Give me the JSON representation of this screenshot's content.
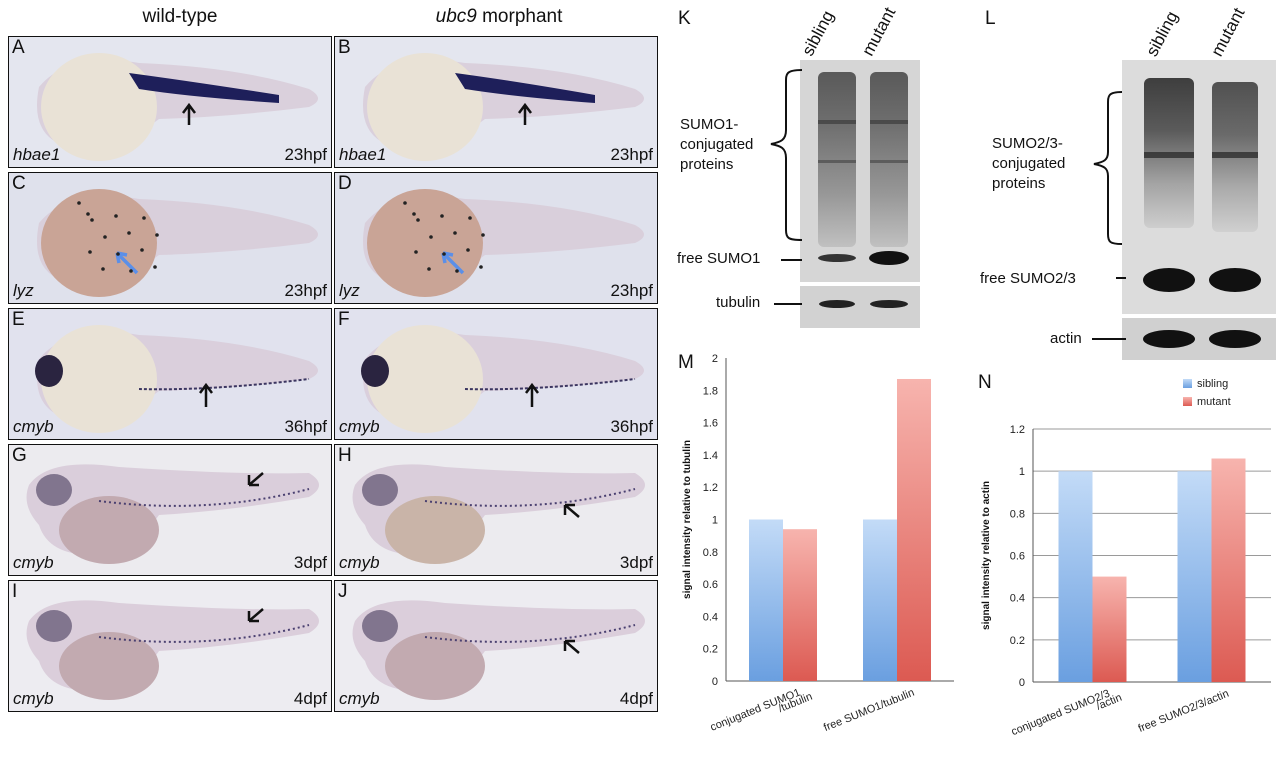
{
  "header": {
    "left": "wild-type",
    "right_gene": "ubc9",
    "right_rest": " morphant"
  },
  "panels": [
    {
      "letter": "A",
      "gene": "hbae1",
      "stage": "23hpf"
    },
    {
      "letter": "B",
      "gene": "hbae1",
      "stage": "23hpf"
    },
    {
      "letter": "C",
      "gene": "lyz",
      "stage": "23hpf"
    },
    {
      "letter": "D",
      "gene": "lyz",
      "stage": "23hpf"
    },
    {
      "letter": "E",
      "gene": "cmyb",
      "stage": "36hpf"
    },
    {
      "letter": "F",
      "gene": "cmyb",
      "stage": "36hpf"
    },
    {
      "letter": "G",
      "gene": "cmyb",
      "stage": "3dpf"
    },
    {
      "letter": "H",
      "gene": "cmyb",
      "stage": "3dpf"
    },
    {
      "letter": "I",
      "gene": "cmyb",
      "stage": "4dpf"
    },
    {
      "letter": "J",
      "gene": "cmyb",
      "stage": "4dpf"
    }
  ],
  "blotK": {
    "letter": "K",
    "lane1": "sibling",
    "lane2": "mutant",
    "label1": "SUMO1-",
    "label2": "conjugated",
    "label3": "proteins",
    "free": "free SUMO1",
    "loading": "tubulin"
  },
  "blotL": {
    "letter": "L",
    "lane1": "sibling",
    "lane2": "mutant",
    "label1": "SUMO2/3-",
    "label2": "conjugated",
    "label3": "proteins",
    "free": "free SUMO2/3",
    "loading": "actin"
  },
  "colors": {
    "sibling": "#8fb8ea",
    "mutant": "#e8817a"
  },
  "chart_data": [
    {
      "type": "bar",
      "letter": "M",
      "categories": [
        "conjugated SUMO1 /tubulin",
        "free SUMO1/tubulin"
      ],
      "category_lines": [
        [
          "conjugated SUMO1",
          "/tubulin"
        ],
        [
          "free SUMO1/tubulin"
        ]
      ],
      "series": [
        {
          "name": "sibling",
          "values": [
            1.0,
            1.0
          ]
        },
        {
          "name": "mutant",
          "values": [
            0.94,
            1.87
          ]
        }
      ],
      "ylabel": "signal intensity relative to tubulin",
      "ylim": [
        0,
        2
      ],
      "yticks": [
        "0",
        "0.2",
        "0.4",
        "0.6",
        "0.8",
        "1",
        "1.2",
        "1.4",
        "1.6",
        "1.8",
        "2"
      ],
      "grid": false,
      "legend": "none"
    },
    {
      "type": "bar",
      "letter": "N",
      "categories": [
        "conjugated SUMO2/3 /actin",
        "free SUMO2/3/actin"
      ],
      "category_lines": [
        [
          "conjugated SUMO2/3",
          "/actin"
        ],
        [
          "free SUMO2/3/actin"
        ]
      ],
      "series": [
        {
          "name": "sibling",
          "values": [
            1.0,
            1.0
          ]
        },
        {
          "name": "mutant",
          "values": [
            0.5,
            1.06
          ]
        }
      ],
      "ylabel": "signal intensity relative to actin",
      "ylim": [
        0,
        1.2
      ],
      "yticks": [
        "0",
        "0.2",
        "0.4",
        "0.6",
        "0.8",
        "1",
        "1.2"
      ],
      "grid": true,
      "legend": "top-right"
    }
  ]
}
